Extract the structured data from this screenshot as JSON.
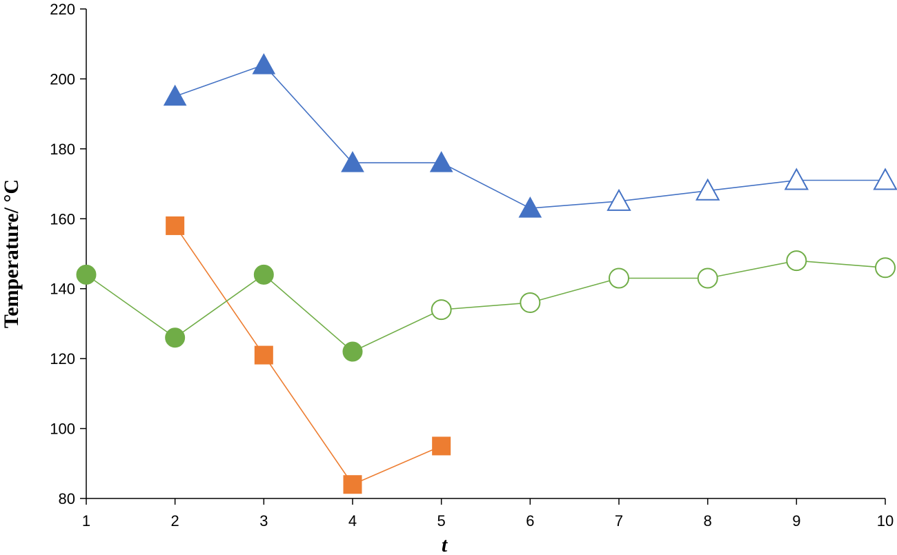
{
  "chart_data": {
    "type": "line",
    "title": "",
    "xlabel": "t",
    "ylabel": "Temperature/ °C",
    "xlim": [
      1,
      10
    ],
    "ylim": [
      80,
      220
    ],
    "x_ticks": [
      1,
      2,
      3,
      4,
      5,
      6,
      7,
      8,
      9,
      10
    ],
    "y_ticks": [
      80,
      100,
      120,
      140,
      160,
      180,
      200,
      220
    ],
    "grid": false,
    "legend": "none",
    "series": [
      {
        "color": "#4472C4",
        "marker": "triangle",
        "points": [
          {
            "x": 2,
            "y": 195,
            "filled": true
          },
          {
            "x": 3,
            "y": 204,
            "filled": true
          },
          {
            "x": 4,
            "y": 176,
            "filled": true
          },
          {
            "x": 5,
            "y": 176,
            "filled": true
          },
          {
            "x": 6,
            "y": 163,
            "filled": true
          },
          {
            "x": 7,
            "y": 165,
            "filled": false
          },
          {
            "x": 8,
            "y": 168,
            "filled": false
          },
          {
            "x": 9,
            "y": 171,
            "filled": false
          },
          {
            "x": 10,
            "y": 171,
            "filled": false
          }
        ]
      },
      {
        "color": "#ED7D31",
        "marker": "square",
        "points": [
          {
            "x": 2,
            "y": 158,
            "filled": true
          },
          {
            "x": 3,
            "y": 121,
            "filled": true
          },
          {
            "x": 4,
            "y": 84,
            "filled": true
          },
          {
            "x": 5,
            "y": 95,
            "filled": true
          }
        ]
      },
      {
        "color": "#70AD47",
        "marker": "circle",
        "points": [
          {
            "x": 1,
            "y": 144,
            "filled": true
          },
          {
            "x": 2,
            "y": 126,
            "filled": true
          },
          {
            "x": 3,
            "y": 144,
            "filled": true
          },
          {
            "x": 4,
            "y": 122,
            "filled": true
          },
          {
            "x": 5,
            "y": 134,
            "filled": false
          },
          {
            "x": 6,
            "y": 136,
            "filled": false
          },
          {
            "x": 7,
            "y": 143,
            "filled": false
          },
          {
            "x": 8,
            "y": 143,
            "filled": false
          },
          {
            "x": 9,
            "y": 148,
            "filled": false
          },
          {
            "x": 10,
            "y": 146,
            "filled": false
          }
        ]
      }
    ]
  }
}
